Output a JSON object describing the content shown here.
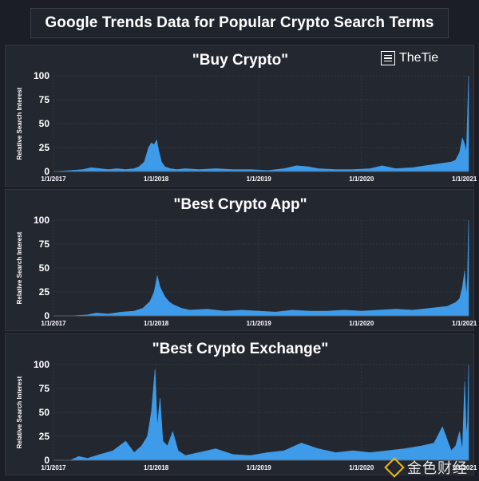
{
  "header": {
    "title": "Google Trends Data for Popular Crypto Search Terms"
  },
  "logo": {
    "text": "TheTie",
    "icon": "thetie-logo-icon"
  },
  "watermark": {
    "text": "金色财经",
    "icon": "jinse-diamond-icon"
  },
  "colors": {
    "fill": "#3d9be9",
    "panel": "#23272f",
    "background": "#1b1e26",
    "grid": "#3a3f4a"
  },
  "chart_data": [
    {
      "type": "area",
      "title": "\"Buy Crypto\"",
      "ylabel": "Relative Search Interest",
      "xlabel": "",
      "ylim": [
        0,
        100
      ],
      "yticks": [
        0,
        25,
        50,
        75,
        100
      ],
      "xlim": [
        "2017-01-01",
        "2021-01-16"
      ],
      "xticks": [
        "2017-01-01",
        "2018-01-01",
        "2019-01-01",
        "2020-01-01",
        "2021-01-01"
      ],
      "xtick_labels": [
        "1/1/2017",
        "1/1/2018",
        "1/1/2019",
        "1/1/2020",
        "1/1/2021"
      ],
      "grid": true,
      "series": [
        {
          "x": [
            "2017-01-01",
            "2017-03-01",
            "2017-04-15",
            "2017-05-15",
            "2017-06-15",
            "2017-07-15",
            "2017-08-15",
            "2017-09-15",
            "2017-10-15",
            "2017-11-01",
            "2017-11-20",
            "2017-12-05",
            "2017-12-15",
            "2017-12-25",
            "2018-01-03",
            "2018-01-10",
            "2018-01-20",
            "2018-02-01",
            "2018-02-20",
            "2018-03-15",
            "2018-04-15",
            "2018-06-01",
            "2018-08-01",
            "2018-10-01",
            "2018-12-01",
            "2019-02-01",
            "2019-04-01",
            "2019-05-15",
            "2019-06-25",
            "2019-08-01",
            "2019-10-01",
            "2019-12-01",
            "2020-02-01",
            "2020-03-15",
            "2020-05-01",
            "2020-07-01",
            "2020-08-15",
            "2020-10-01",
            "2020-11-15",
            "2020-12-01",
            "2020-12-15",
            "2020-12-25",
            "2021-01-02",
            "2021-01-08",
            "2021-01-12",
            "2021-01-16"
          ],
          "values": [
            0,
            1,
            2,
            4,
            3,
            2,
            3,
            2,
            3,
            5,
            10,
            25,
            30,
            28,
            33,
            22,
            10,
            5,
            3,
            2,
            3,
            2,
            3,
            2,
            2,
            1,
            3,
            6,
            5,
            3,
            2,
            2,
            3,
            6,
            3,
            4,
            6,
            8,
            10,
            12,
            20,
            35,
            28,
            20,
            60,
            100
          ]
        }
      ]
    },
    {
      "type": "area",
      "title": "\"Best Crypto App\"",
      "ylabel": "Relative Search Interest",
      "xlabel": "",
      "ylim": [
        0,
        100
      ],
      "yticks": [
        0,
        25,
        50,
        75,
        100
      ],
      "xlim": [
        "2017-01-01",
        "2021-01-16"
      ],
      "xticks": [
        "2017-01-01",
        "2018-01-01",
        "2019-01-01",
        "2020-01-01",
        "2021-01-01"
      ],
      "xtick_labels": [
        "1/1/2017",
        "1/1/2018",
        "1/1/2019",
        "1/1/2020",
        "1/1/2021"
      ],
      "grid": true,
      "series": [
        {
          "x": [
            "2017-01-01",
            "2017-03-01",
            "2017-05-01",
            "2017-06-01",
            "2017-07-15",
            "2017-09-01",
            "2017-10-15",
            "2017-11-15",
            "2017-12-10",
            "2017-12-25",
            "2018-01-05",
            "2018-01-15",
            "2018-02-01",
            "2018-02-15",
            "2018-03-01",
            "2018-04-01",
            "2018-05-01",
            "2018-07-01",
            "2018-09-01",
            "2018-11-01",
            "2019-01-01",
            "2019-03-01",
            "2019-05-01",
            "2019-07-01",
            "2019-09-01",
            "2019-11-01",
            "2020-01-01",
            "2020-03-01",
            "2020-05-01",
            "2020-07-01",
            "2020-09-01",
            "2020-11-01",
            "2020-12-01",
            "2020-12-15",
            "2020-12-25",
            "2021-01-02",
            "2021-01-08",
            "2021-01-12",
            "2021-01-16"
          ],
          "values": [
            0,
            0,
            1,
            3,
            2,
            4,
            5,
            8,
            15,
            25,
            42,
            30,
            20,
            15,
            12,
            8,
            6,
            7,
            5,
            6,
            5,
            4,
            6,
            5,
            5,
            6,
            5,
            6,
            7,
            6,
            8,
            10,
            14,
            18,
            30,
            47,
            20,
            40,
            100
          ]
        }
      ]
    },
    {
      "type": "area",
      "title": "\"Best Crypto Exchange\"",
      "ylabel": "Relative Search Interest",
      "xlabel": "",
      "ylim": [
        0,
        100
      ],
      "yticks": [
        0,
        25,
        50,
        75,
        100
      ],
      "xlim": [
        "2017-01-01",
        "2021-01-16"
      ],
      "xticks": [
        "2017-01-01",
        "2018-01-01",
        "2019-01-01",
        "2020-01-01",
        "2021-01-01"
      ],
      "xtick_labels": [
        "1/1/2017",
        "1/1/2018",
        "1/1/2019",
        "1/1/2020",
        "1/1/2021"
      ],
      "grid": true,
      "series": [
        {
          "x": [
            "2017-01-01",
            "2017-03-01",
            "2017-04-01",
            "2017-05-01",
            "2017-06-15",
            "2017-08-01",
            "2017-09-15",
            "2017-10-15",
            "2017-11-10",
            "2017-12-01",
            "2017-12-15",
            "2017-12-28",
            "2018-01-05",
            "2018-01-15",
            "2018-01-25",
            "2018-02-10",
            "2018-03-01",
            "2018-03-20",
            "2018-04-15",
            "2018-06-01",
            "2018-08-01",
            "2018-10-01",
            "2018-12-01",
            "2019-02-01",
            "2019-04-01",
            "2019-06-01",
            "2019-08-01",
            "2019-10-01",
            "2019-12-01",
            "2020-02-01",
            "2020-04-01",
            "2020-06-01",
            "2020-08-01",
            "2020-09-15",
            "2020-10-15",
            "2020-11-15",
            "2020-12-01",
            "2020-12-15",
            "2020-12-25",
            "2021-01-02",
            "2021-01-08",
            "2021-01-12",
            "2021-01-16"
          ],
          "values": [
            0,
            0,
            4,
            2,
            6,
            10,
            20,
            8,
            15,
            25,
            50,
            95,
            35,
            65,
            20,
            15,
            30,
            10,
            5,
            8,
            12,
            6,
            5,
            8,
            10,
            18,
            12,
            8,
            10,
            8,
            10,
            12,
            15,
            18,
            35,
            10,
            15,
            30,
            10,
            82,
            25,
            40,
            100
          ]
        }
      ]
    }
  ]
}
